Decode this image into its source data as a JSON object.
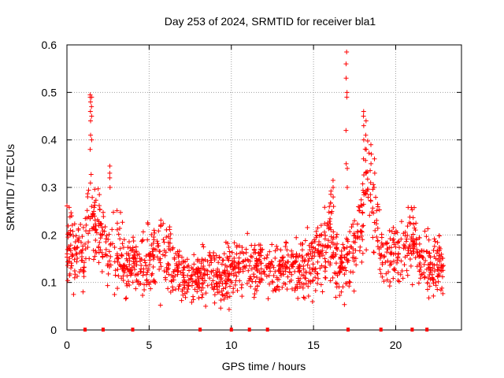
{
  "chart_data": {
    "type": "scatter",
    "title": "Day 253 of 2024, SRMTID for receiver bla1",
    "xlabel": "GPS time / hours",
    "ylabel": "SRMTID / TECUs",
    "xlim": [
      0,
      24
    ],
    "ylim": [
      0,
      0.6
    ],
    "xticks": [
      0,
      5,
      10,
      15,
      20
    ],
    "yticks": [
      0,
      0.1,
      0.2,
      0.3,
      0.4,
      0.5,
      0.6
    ],
    "grid": true,
    "marker": "+",
    "series_color": "#ff0000",
    "envelope": {
      "x": [
        0.0,
        0.5,
        1.0,
        1.3,
        1.5,
        1.8,
        2.3,
        3.0,
        3.5,
        4.2,
        5.0,
        5.5,
        6.0,
        6.5,
        7.0,
        7.5,
        8.0,
        8.5,
        9.0,
        9.5,
        10.0,
        10.5,
        11.0,
        11.5,
        12.0,
        12.5,
        13.0,
        13.5,
        14.0,
        14.5,
        15.0,
        15.5,
        16.0,
        16.3,
        16.6,
        16.8,
        17.0,
        17.2,
        17.5,
        18.0,
        18.3,
        18.6,
        19.0,
        19.5,
        20.0,
        20.5,
        21.0,
        21.5,
        22.0,
        22.5,
        22.9
      ],
      "center": [
        0.19,
        0.17,
        0.15,
        0.22,
        0.26,
        0.2,
        0.18,
        0.16,
        0.14,
        0.13,
        0.14,
        0.17,
        0.16,
        0.13,
        0.12,
        0.12,
        0.11,
        0.12,
        0.11,
        0.1,
        0.12,
        0.13,
        0.14,
        0.12,
        0.13,
        0.12,
        0.12,
        0.13,
        0.14,
        0.13,
        0.14,
        0.17,
        0.2,
        0.15,
        0.11,
        0.14,
        0.16,
        0.15,
        0.16,
        0.24,
        0.3,
        0.24,
        0.16,
        0.14,
        0.17,
        0.16,
        0.2,
        0.15,
        0.14,
        0.15,
        0.12
      ],
      "spread": [
        0.06,
        0.05,
        0.05,
        0.07,
        0.08,
        0.06,
        0.05,
        0.05,
        0.04,
        0.04,
        0.05,
        0.05,
        0.05,
        0.04,
        0.04,
        0.04,
        0.04,
        0.04,
        0.04,
        0.04,
        0.04,
        0.04,
        0.04,
        0.04,
        0.04,
        0.04,
        0.04,
        0.04,
        0.04,
        0.04,
        0.04,
        0.05,
        0.06,
        0.05,
        0.04,
        0.05,
        0.05,
        0.05,
        0.05,
        0.07,
        0.07,
        0.06,
        0.05,
        0.04,
        0.05,
        0.05,
        0.05,
        0.05,
        0.05,
        0.05,
        0.03
      ]
    },
    "spikes": [
      {
        "x": 1.42,
        "values": [
          0.38,
          0.41,
          0.44,
          0.46,
          0.48,
          0.49,
          0.495
        ]
      },
      {
        "x": 1.48,
        "values": [
          0.4,
          0.45,
          0.47,
          0.49
        ]
      },
      {
        "x": 2.6,
        "values": [
          0.3,
          0.32,
          0.33,
          0.345
        ]
      },
      {
        "x": 16.2,
        "values": [
          0.26,
          0.28,
          0.3,
          0.315
        ]
      },
      {
        "x": 17.0,
        "values": [
          0.35,
          0.42,
          0.49,
          0.53,
          0.56,
          0.585
        ]
      },
      {
        "x": 17.05,
        "values": [
          0.3,
          0.34,
          0.5
        ]
      },
      {
        "x": 18.05,
        "values": [
          0.36,
          0.4,
          0.43,
          0.45,
          0.46
        ]
      },
      {
        "x": 18.2,
        "values": [
          0.33,
          0.38,
          0.41,
          0.44
        ]
      },
      {
        "x": 18.5,
        "values": [
          0.31,
          0.35,
          0.37,
          0.39
        ]
      },
      {
        "x": 18.7,
        "values": [
          0.3,
          0.33,
          0.36
        ]
      }
    ],
    "zero_markers": [
      1.1,
      2.2,
      4.0,
      8.1,
      10.0,
      11.1,
      12.2,
      17.1,
      19.1,
      21.0,
      21.9
    ]
  }
}
